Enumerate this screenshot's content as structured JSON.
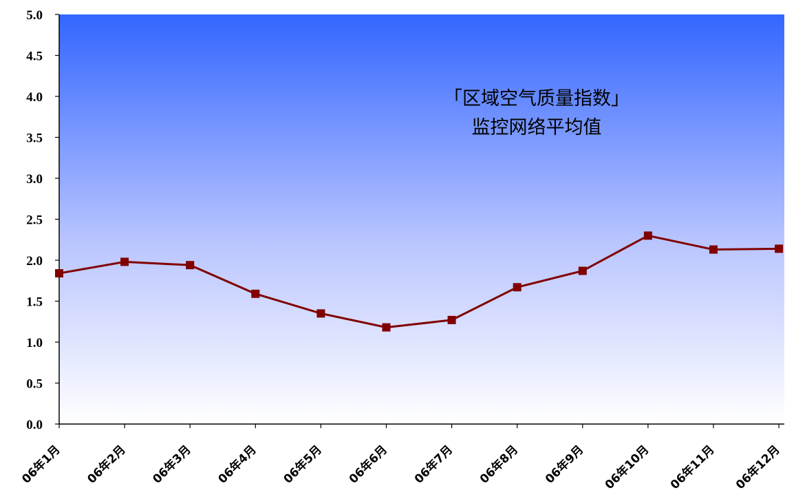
{
  "chart_data": {
    "type": "line",
    "title": [
      "「区域空气质量指数」",
      "监控网络平均值"
    ],
    "categories": [
      "06年1月",
      "06年2月",
      "06年3月",
      "06年4月",
      "06年5月",
      "06年6月",
      "06年7月",
      "06年8月",
      "06年9月",
      "06年10月",
      "06年11月",
      "06年12月"
    ],
    "series": [
      {
        "values": [
          1.84,
          1.98,
          1.94,
          1.59,
          1.35,
          1.18,
          1.27,
          1.67,
          1.87,
          2.3,
          2.13,
          2.14
        ]
      }
    ],
    "yticks": [
      "0.0",
      "0.5",
      "1.0",
      "1.5",
      "2.0",
      "2.5",
      "3.0",
      "3.5",
      "4.0",
      "4.5",
      "5.0"
    ],
    "ylim": [
      0,
      5
    ],
    "xlabel": "",
    "ylabel": "",
    "grid": false,
    "colors": {
      "line": "#800000",
      "marker": "#800000",
      "bg_top": "#3366ff",
      "bg_bottom": "#ffffff",
      "axis": "#000000"
    }
  }
}
